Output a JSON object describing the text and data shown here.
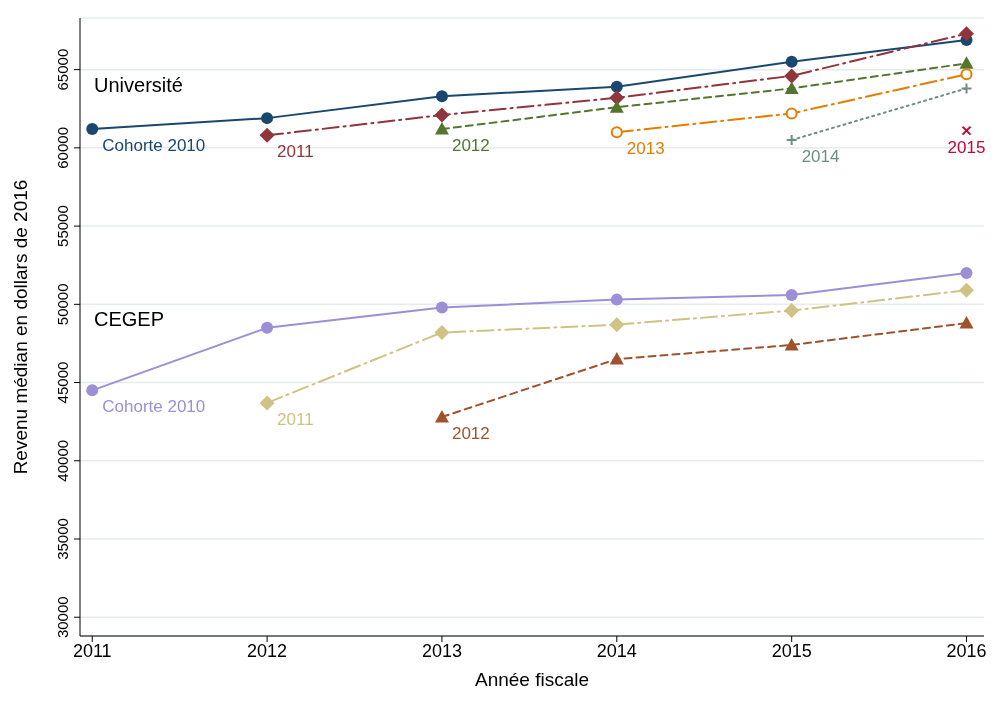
{
  "chart_data": {
    "type": "line",
    "xlabel": "Année fiscale",
    "ylabel": "Revenu médian en dollars de 2016",
    "x": [
      2011,
      2012,
      2013,
      2014,
      2015,
      2016
    ],
    "xlim": [
      2010.93,
      2016.1
    ],
    "xticks": [
      2011,
      2012,
      2013,
      2014,
      2015,
      2016
    ],
    "ylim": [
      28800,
      68300
    ],
    "yticks": [
      30000,
      35000,
      40000,
      45000,
      50000,
      55000,
      60000,
      65000
    ],
    "grid": "y",
    "annotations": [
      "Université",
      "CEGEP"
    ],
    "series": [
      {
        "name": "Cohorte 2010",
        "color": "#1a476f",
        "marker": "circle",
        "line_style": "solid",
        "values": [
          61200,
          61900,
          63300,
          63900,
          65500,
          66900
        ]
      },
      {
        "name": "2011",
        "color": "#90353b",
        "marker": "diamond",
        "line_style": "dashdot",
        "values": [
          null,
          60800,
          62100,
          63200,
          64600,
          67300
        ]
      },
      {
        "name": "2012",
        "color": "#55752f",
        "marker": "triangle",
        "line_style": "dashed",
        "values": [
          null,
          null,
          61200,
          62600,
          63800,
          65400
        ]
      },
      {
        "name": "2013",
        "color": "#e37e00",
        "marker": "circle_open",
        "line_style": "dashdot",
        "values": [
          null,
          null,
          null,
          61000,
          62200,
          64700
        ]
      },
      {
        "name": "2014",
        "color": "#6e8e84",
        "marker": "plus",
        "line_style": "dotted",
        "values": [
          null,
          null,
          null,
          null,
          60500,
          63800
        ]
      },
      {
        "name": "2015",
        "color": "#c10534",
        "marker": "cross",
        "line_style": "solid",
        "values": [
          null,
          null,
          null,
          null,
          null,
          61100
        ]
      },
      {
        "name": "Cohorte 2010",
        "color": "#9c8fd6",
        "marker": "circle",
        "line_style": "solid",
        "values": [
          44500,
          48500,
          49800,
          50300,
          50600,
          52000
        ]
      },
      {
        "name": "2011",
        "color": "#cfc285",
        "marker": "diamond",
        "line_style": "dashdot",
        "values": [
          null,
          43700,
          48200,
          48700,
          49600,
          50900
        ]
      },
      {
        "name": "2012",
        "color": "#a0522d",
        "marker": "triangle",
        "line_style": "dashed",
        "values": [
          null,
          null,
          42800,
          46500,
          47400,
          48800
        ]
      }
    ]
  }
}
